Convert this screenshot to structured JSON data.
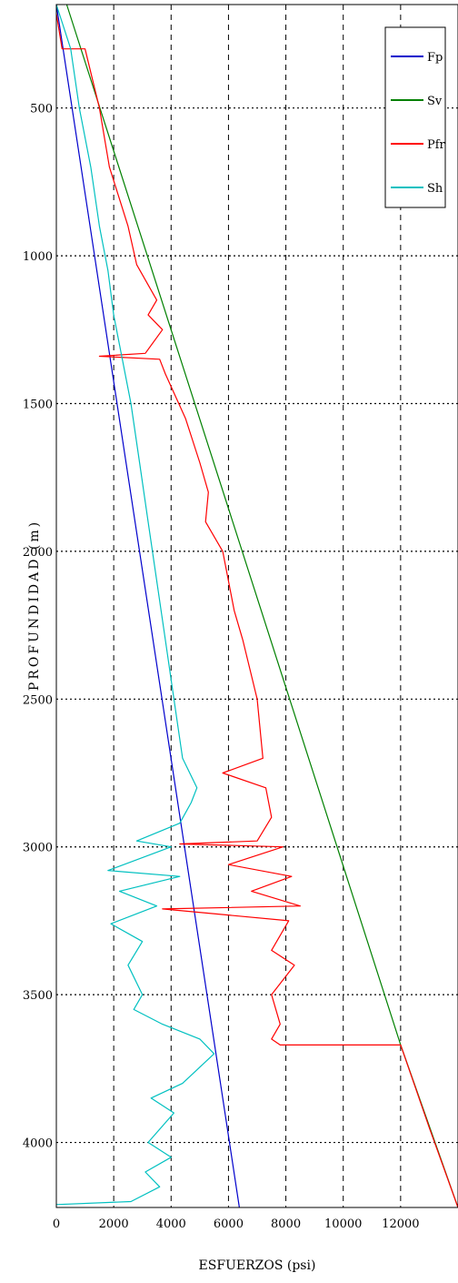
{
  "chart_data": {
    "type": "line",
    "title": "",
    "xlabel": "ESFUERZOS (psi)",
    "ylabel": "PROFUNDIDAD (m)",
    "xlim": [
      0,
      14000
    ],
    "ylim": [
      150,
      4220
    ],
    "y_inverted": true,
    "x_ticks": [
      0,
      2000,
      4000,
      6000,
      8000,
      10000,
      12000
    ],
    "x_tick_labels": [
      "0",
      "2000",
      "4000",
      "6000",
      "8000",
      "10000",
      "12000"
    ],
    "y_ticks": [
      500,
      1000,
      1500,
      2000,
      2500,
      3000,
      3500,
      4000
    ],
    "y_tick_labels": [
      "500",
      "1000",
      "1500",
      "2000",
      "2500",
      "3000",
      "3500",
      "4000"
    ],
    "grid": {
      "vertical": "dashed",
      "horizontal": "dotted"
    },
    "legend_position": "top-right",
    "series": [
      {
        "name": "Fp",
        "color": "#0000cc",
        "points": [
          [
            0,
            150
          ],
          [
            6380,
            4220
          ]
        ]
      },
      {
        "name": "Sv",
        "color": "#008000",
        "points": [
          [
            360,
            150
          ],
          [
            12000,
            3670
          ],
          [
            14000,
            4220
          ]
        ]
      },
      {
        "name": "Pfr",
        "color": "#ff0000",
        "points": [
          [
            0,
            180
          ],
          [
            200,
            300
          ],
          [
            1000,
            300
          ],
          [
            1500,
            500
          ],
          [
            1850,
            700
          ],
          [
            2500,
            900
          ],
          [
            2800,
            1030
          ],
          [
            3500,
            1150
          ],
          [
            3200,
            1200
          ],
          [
            3700,
            1250
          ],
          [
            3100,
            1330
          ],
          [
            1500,
            1340
          ],
          [
            3600,
            1350
          ],
          [
            3800,
            1400
          ],
          [
            4500,
            1550
          ],
          [
            5000,
            1700
          ],
          [
            5300,
            1800
          ],
          [
            5200,
            1900
          ],
          [
            5800,
            2000
          ],
          [
            6200,
            2200
          ],
          [
            6500,
            2300
          ],
          [
            7000,
            2500
          ],
          [
            7200,
            2700
          ],
          [
            5800,
            2750
          ],
          [
            7300,
            2800
          ],
          [
            7500,
            2900
          ],
          [
            7000,
            2980
          ],
          [
            4300,
            2990
          ],
          [
            7900,
            3000
          ],
          [
            6000,
            3060
          ],
          [
            8200,
            3100
          ],
          [
            6800,
            3150
          ],
          [
            8500,
            3200
          ],
          [
            3700,
            3210
          ],
          [
            8100,
            3250
          ],
          [
            7500,
            3350
          ],
          [
            8300,
            3400
          ],
          [
            7500,
            3500
          ],
          [
            7800,
            3600
          ],
          [
            7500,
            3650
          ],
          [
            7800,
            3670
          ],
          [
            12000,
            3670
          ],
          [
            13000,
            3950
          ],
          [
            14000,
            4220
          ]
        ]
      },
      {
        "name": "Sh",
        "color": "#00c0c0",
        "points": [
          [
            0,
            150
          ],
          [
            500,
            300
          ],
          [
            800,
            500
          ],
          [
            1200,
            700
          ],
          [
            1500,
            900
          ],
          [
            1800,
            1050
          ],
          [
            2000,
            1200
          ],
          [
            2300,
            1350
          ],
          [
            2600,
            1500
          ],
          [
            2900,
            1700
          ],
          [
            3200,
            1900
          ],
          [
            3500,
            2100
          ],
          [
            3800,
            2300
          ],
          [
            4100,
            2500
          ],
          [
            4400,
            2700
          ],
          [
            4900,
            2800
          ],
          [
            4700,
            2850
          ],
          [
            4300,
            2920
          ],
          [
            2800,
            2980
          ],
          [
            4000,
            3000
          ],
          [
            1800,
            3080
          ],
          [
            4300,
            3100
          ],
          [
            2200,
            3150
          ],
          [
            3500,
            3200
          ],
          [
            1900,
            3260
          ],
          [
            3000,
            3320
          ],
          [
            2500,
            3400
          ],
          [
            3000,
            3500
          ],
          [
            2700,
            3550
          ],
          [
            3700,
            3600
          ],
          [
            5000,
            3650
          ],
          [
            5500,
            3700
          ],
          [
            4400,
            3800
          ],
          [
            3300,
            3850
          ],
          [
            4100,
            3900
          ],
          [
            3200,
            4000
          ],
          [
            4000,
            4050
          ],
          [
            3100,
            4100
          ],
          [
            3600,
            4150
          ],
          [
            2600,
            4200
          ],
          [
            0,
            4210
          ]
        ]
      }
    ]
  }
}
